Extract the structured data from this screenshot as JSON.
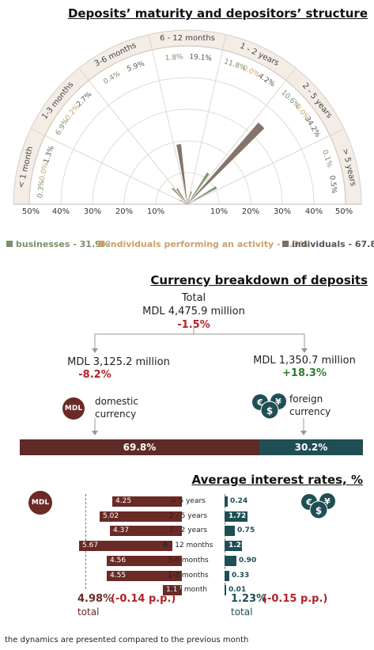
{
  "section1": {
    "title": "Deposits’ maturity and depositors’ structure",
    "legend": [
      {
        "label": "businesses - 31.9%",
        "color": "#7a8f6a"
      },
      {
        "label": "individuals performing an activity - 0.3%",
        "color": "#c8a26e"
      },
      {
        "label": "individuals - 67.8%",
        "color": "#7d6e64"
      }
    ]
  },
  "chart_data": {
    "type": "polar-bar",
    "title": "Deposits’ maturity and depositors’ structure",
    "categories": [
      "< 1 month",
      "1-3 months",
      "3-6 months",
      "6 - 12 months",
      "1 - 2 years",
      "2 - 5 years",
      "> 5 years"
    ],
    "series": [
      {
        "name": "businesses",
        "values": [
          0.3,
          6.9,
          0.4,
          1.8,
          11.8,
          10.6,
          0.1
        ],
        "color": "#7a8f6a"
      },
      {
        "name": "individuals performing an activity",
        "values": [
          0.0,
          0.2,
          null,
          null,
          0.0,
          0.0,
          null
        ],
        "color": "#c8a26e"
      },
      {
        "name": "individuals",
        "values": [
          1.3,
          2.7,
          5.9,
          19.1,
          4.2,
          34.2,
          0.5
        ],
        "color": "#7d6e64"
      }
    ],
    "axis_ticks": [
      "50%",
      "40%",
      "30%",
      "20%",
      "10%",
      "10%",
      "20%",
      "30%",
      "40%",
      "50%"
    ],
    "radial_max": 50,
    "value_labels": [
      {
        "text": "0.3%",
        "color": "#7a8f6a"
      },
      {
        "text": "0.0%",
        "color": "#c8a26e"
      },
      {
        "text": "1.3%",
        "color": "#555555"
      },
      {
        "text": "6.9%",
        "color": "#7a8f6a"
      },
      {
        "text": "0.2%",
        "color": "#c8a26e"
      },
      {
        "text": "2.7%",
        "color": "#555555"
      },
      {
        "text": "0.4%",
        "color": "#7a8f6a"
      },
      {
        "text": "5.9%",
        "color": "#555555"
      },
      {
        "text": "1.8%",
        "color": "#7a8f6a"
      },
      {
        "text": "19.1%",
        "color": "#555555"
      },
      {
        "text": "11.8%",
        "color": "#7a8f6a"
      },
      {
        "text": "0.0%",
        "color": "#c8a26e"
      },
      {
        "text": "4.2%",
        "color": "#555555"
      },
      {
        "text": "10.6%",
        "color": "#7a8f6a"
      },
      {
        "text": "0.0%",
        "color": "#c8a26e"
      },
      {
        "text": "34.2%",
        "color": "#555555"
      },
      {
        "text": "0.1%",
        "color": "#7a8f6a"
      },
      {
        "text": "0.5%",
        "color": "#555555"
      }
    ]
  },
  "section2": {
    "title": "Currency breakdown of deposits",
    "total_label": "Total",
    "total_value": "MDL 4,475.9 million",
    "total_change": "-1.5%",
    "domestic_value": "MDL 3,125.2 million",
    "domestic_change": "-8.2%",
    "domestic_label_1": "domestic",
    "domestic_label_2": "currency",
    "foreign_value": "MDL 1,350.7 million",
    "foreign_change": "+18.3%",
    "foreign_label_1": "foreign",
    "foreign_label_2": "currency",
    "mdl_badge": "MDL",
    "domestic_share": 69.8,
    "foreign_share": 30.2,
    "domestic_share_label": "69.8%",
    "foreign_share_label": "30.2%",
    "domestic_color": "#5e2a26",
    "foreign_color": "#1f4f55"
  },
  "section3": {
    "title": "Average interest rates, %",
    "mdl_badge": "MDL",
    "rates": [
      {
        "category": "> 5 years",
        "mdl": 4.25,
        "mdl_label": "4.25",
        "foreign": 0.24,
        "foreign_label": "0.24"
      },
      {
        "category": "2 - 5 years",
        "mdl": 5.02,
        "mdl_label": "5.02",
        "foreign": 1.72,
        "foreign_label": "1.72"
      },
      {
        "category": "1 - 2 years",
        "mdl": 4.37,
        "mdl_label": "4.37",
        "foreign": 0.75,
        "foreign_label": "0.75"
      },
      {
        "category": "6 - 12 months",
        "mdl": 5.67,
        "mdl_label": "5.67",
        "foreign": 1.29,
        "foreign_label": "1.29"
      },
      {
        "category": "3-6 months",
        "mdl": 4.56,
        "mdl_label": "4.56",
        "foreign": 0.9,
        "foreign_label": "0.90"
      },
      {
        "category": "1-3 months",
        "mdl": 4.55,
        "mdl_label": "4.55",
        "foreign": 0.33,
        "foreign_label": "0.33"
      },
      {
        "category": "< 1 month",
        "mdl": 1.17,
        "mdl_label": "1.17",
        "foreign": 0.01,
        "foreign_label": "0.01"
      }
    ],
    "mdl_total_value": "4.98%",
    "mdl_total_change": "(-0.14 p.p.)",
    "mdl_total_label": "total",
    "foreign_total_value": "1.23%",
    "foreign_total_change": "(-0.15 p.p.)",
    "foreign_total_label": "total"
  },
  "footnote": "the dynamics are presented compared to the previous month"
}
